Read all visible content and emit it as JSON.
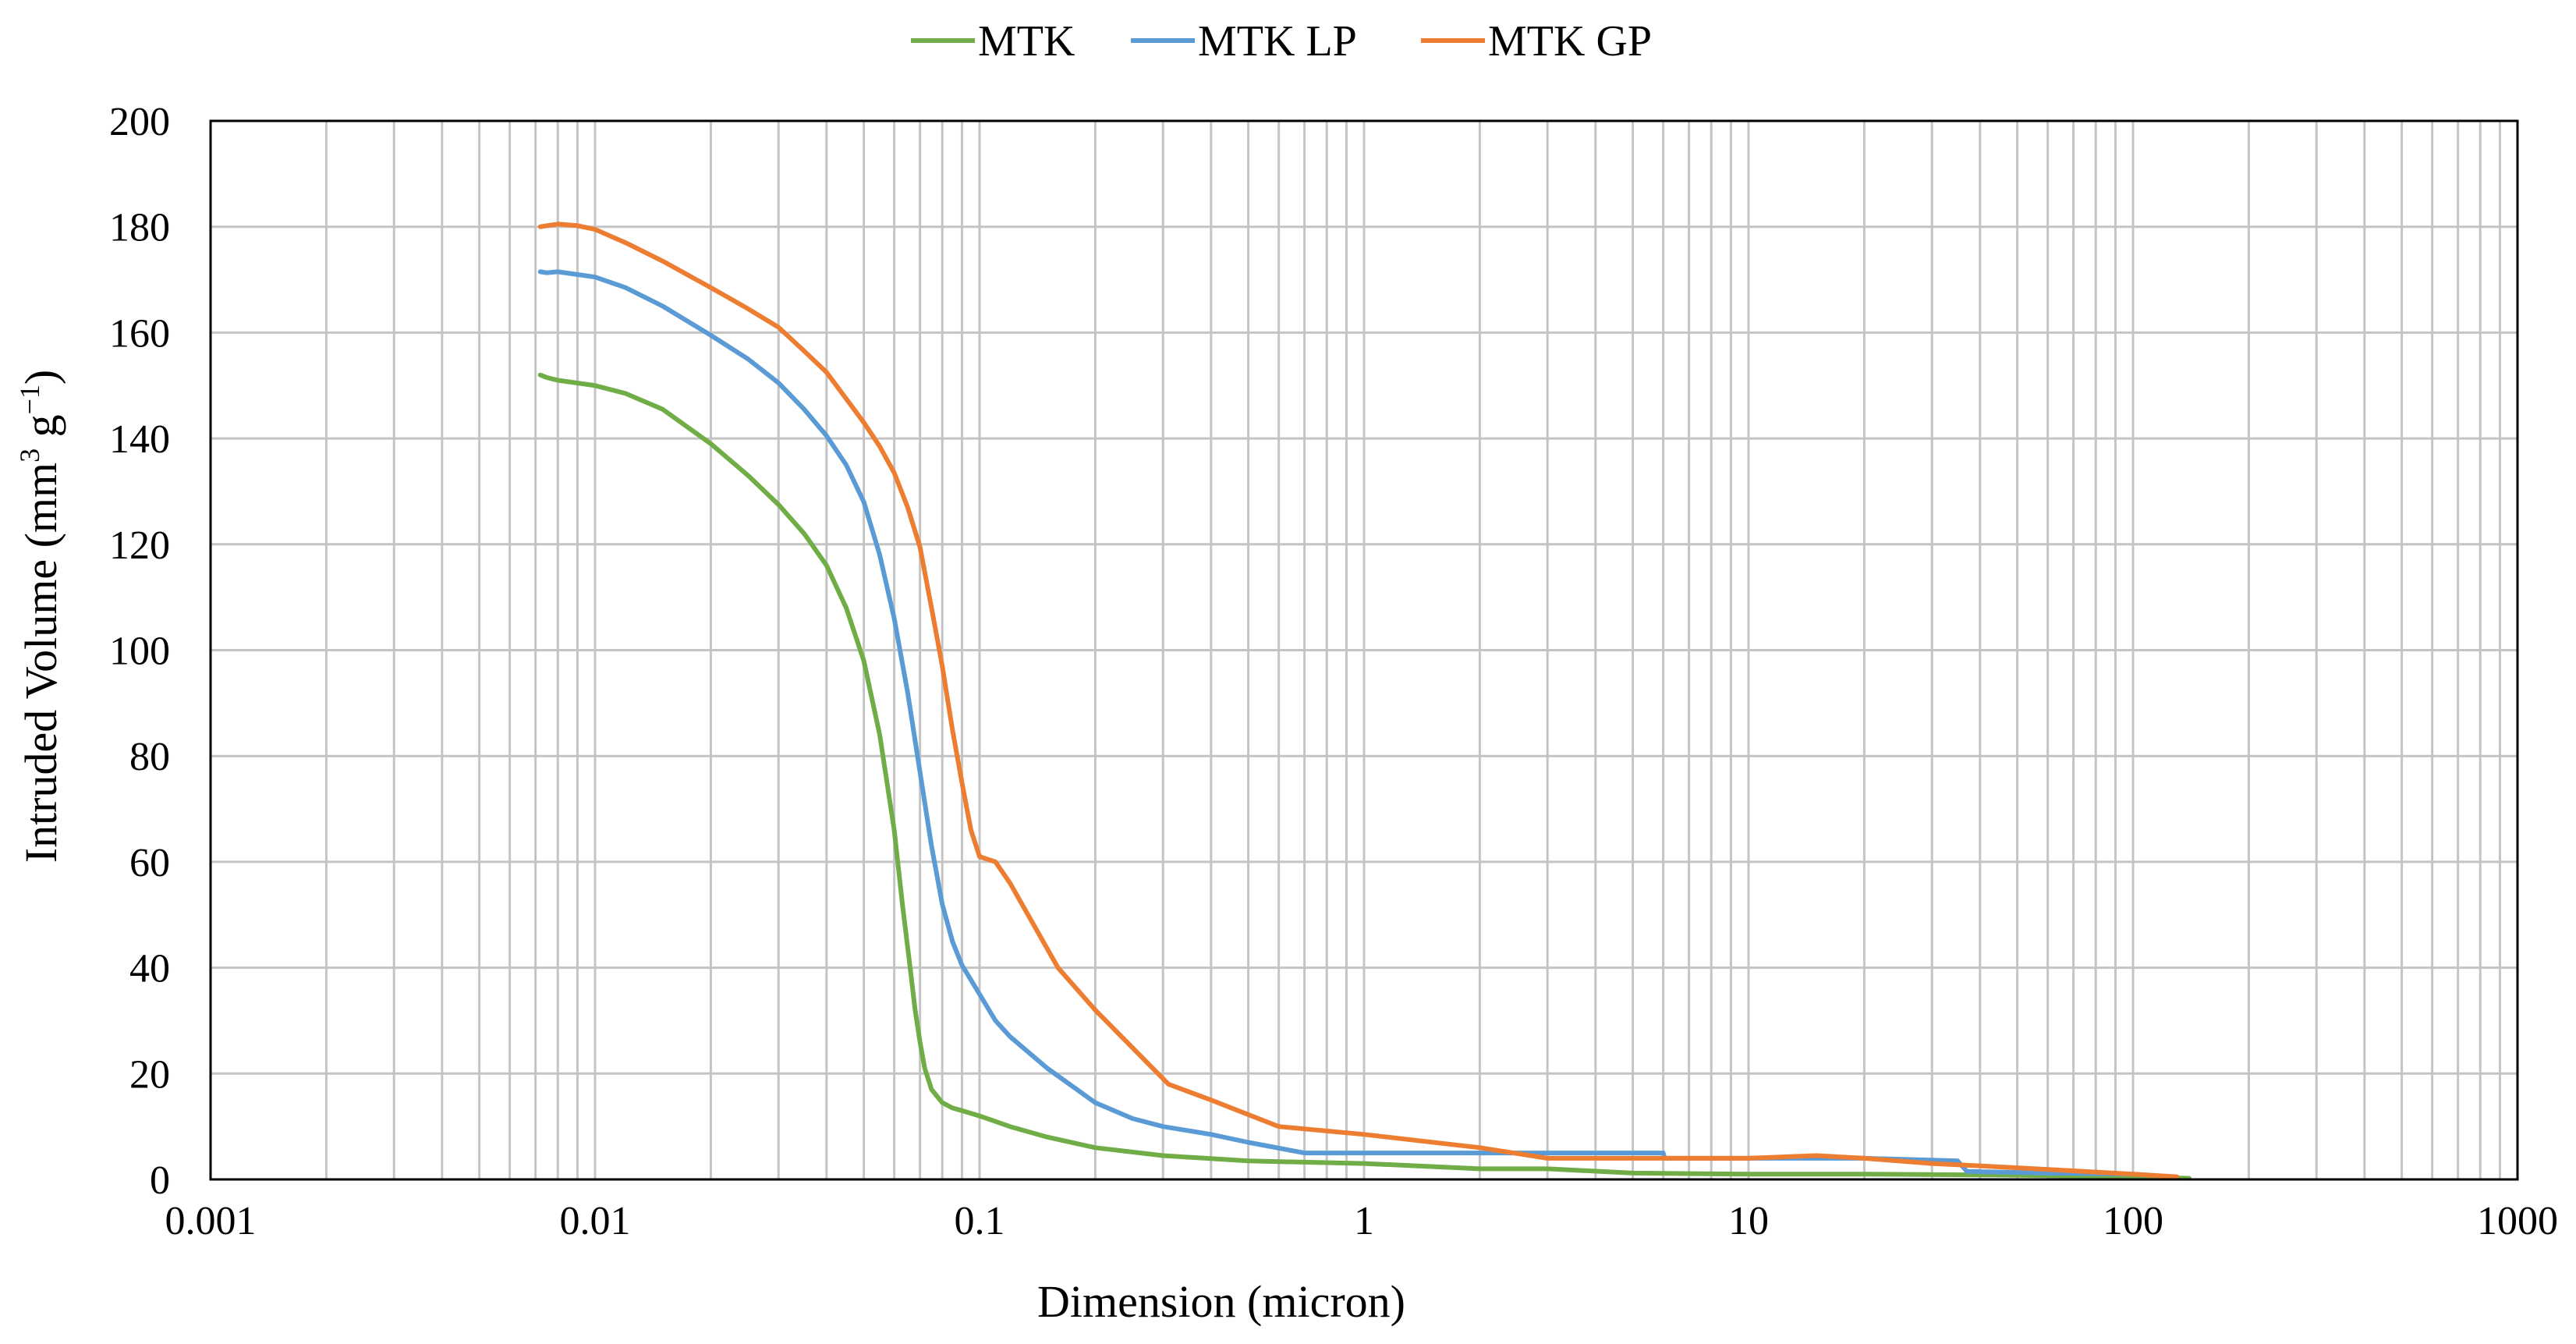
{
  "chart_data": {
    "type": "line",
    "x_scale": "log",
    "title": "",
    "xlabel": "Dimension (micron)",
    "ylabel_main": "Intruded Volume (mm",
    "ylabel_sup1": "3",
    "ylabel_mid": " g",
    "ylabel_sup2": "−1",
    "ylabel_end": ")",
    "xlim": [
      0.001,
      1000
    ],
    "ylim": [
      0,
      200
    ],
    "x_ticks": [
      0.001,
      0.01,
      0.1,
      1,
      10,
      100,
      1000
    ],
    "x_tick_labels": [
      "0.001",
      "0.01",
      "0.1",
      "1",
      "10",
      "100",
      "1000"
    ],
    "y_ticks": [
      0,
      20,
      40,
      60,
      80,
      100,
      120,
      140,
      160,
      180,
      200
    ],
    "y_tick_labels": [
      "0",
      "20",
      "40",
      "60",
      "80",
      "100",
      "120",
      "140",
      "160",
      "180",
      "200"
    ],
    "grid": true,
    "legend_position": "top-center",
    "series": [
      {
        "name": "MTK",
        "color": "#70ad47",
        "x": [
          0.0072,
          0.0075,
          0.008,
          0.01,
          0.012,
          0.015,
          0.02,
          0.025,
          0.03,
          0.035,
          0.04,
          0.045,
          0.05,
          0.055,
          0.06,
          0.063,
          0.066,
          0.068,
          0.07,
          0.072,
          0.075,
          0.08,
          0.085,
          0.09,
          0.1,
          0.12,
          0.15,
          0.2,
          0.3,
          0.5,
          1,
          2,
          3,
          5,
          10,
          20,
          50,
          100,
          140
        ],
        "values": [
          152,
          151.5,
          151,
          150,
          148.5,
          145.5,
          139,
          133,
          127.5,
          122,
          116,
          108,
          98,
          84,
          66,
          52,
          40,
          32,
          26,
          21,
          17,
          14.5,
          13.5,
          13,
          12,
          10,
          8,
          6,
          4.5,
          3.5,
          3,
          2,
          2,
          1.2,
          1,
          1,
          0.8,
          0.5,
          0.2
        ]
      },
      {
        "name": "MTK LP",
        "color": "#5b9bd5",
        "x": [
          0.0072,
          0.0075,
          0.008,
          0.01,
          0.012,
          0.015,
          0.02,
          0.025,
          0.03,
          0.035,
          0.04,
          0.045,
          0.05,
          0.055,
          0.06,
          0.065,
          0.07,
          0.075,
          0.08,
          0.085,
          0.09,
          0.1,
          0.11,
          0.12,
          0.15,
          0.2,
          0.25,
          0.3,
          0.4,
          0.5,
          0.7,
          1,
          2,
          5,
          6,
          6.05,
          10,
          20,
          35,
          37,
          60,
          100,
          110
        ],
        "values": [
          171.5,
          171.3,
          171.5,
          170.5,
          168.5,
          165,
          159.5,
          155,
          150.5,
          145.5,
          140.5,
          135,
          128,
          118,
          106,
          92,
          77,
          63,
          52,
          45,
          40.5,
          35,
          30,
          27,
          21,
          14.5,
          11.5,
          10,
          8.5,
          7,
          5,
          5,
          5,
          5,
          5,
          4,
          4,
          4,
          3.5,
          1.5,
          1.2,
          1,
          0.8
        ]
      },
      {
        "name": "MTK GP",
        "color": "#ed7d31",
        "x": [
          0.0072,
          0.0075,
          0.008,
          0.009,
          0.01,
          0.012,
          0.015,
          0.02,
          0.025,
          0.03,
          0.035,
          0.04,
          0.045,
          0.05,
          0.055,
          0.06,
          0.065,
          0.07,
          0.075,
          0.08,
          0.085,
          0.09,
          0.095,
          0.1,
          0.11,
          0.12,
          0.16,
          0.2,
          0.31,
          0.4,
          0.6,
          1,
          2,
          3,
          5,
          10,
          15,
          20,
          30,
          50,
          100,
          130
        ],
        "values": [
          180,
          180.2,
          180.5,
          180.2,
          179.5,
          177,
          173.5,
          168.5,
          164.5,
          161,
          156.5,
          152.5,
          147.5,
          143,
          138.5,
          133.5,
          127,
          119.5,
          108,
          97,
          85,
          75,
          66,
          61,
          60,
          56,
          40,
          32,
          18,
          15,
          10,
          8.5,
          6,
          4,
          4,
          4,
          4.5,
          4,
          3,
          2.2,
          1,
          0.5
        ]
      }
    ]
  }
}
